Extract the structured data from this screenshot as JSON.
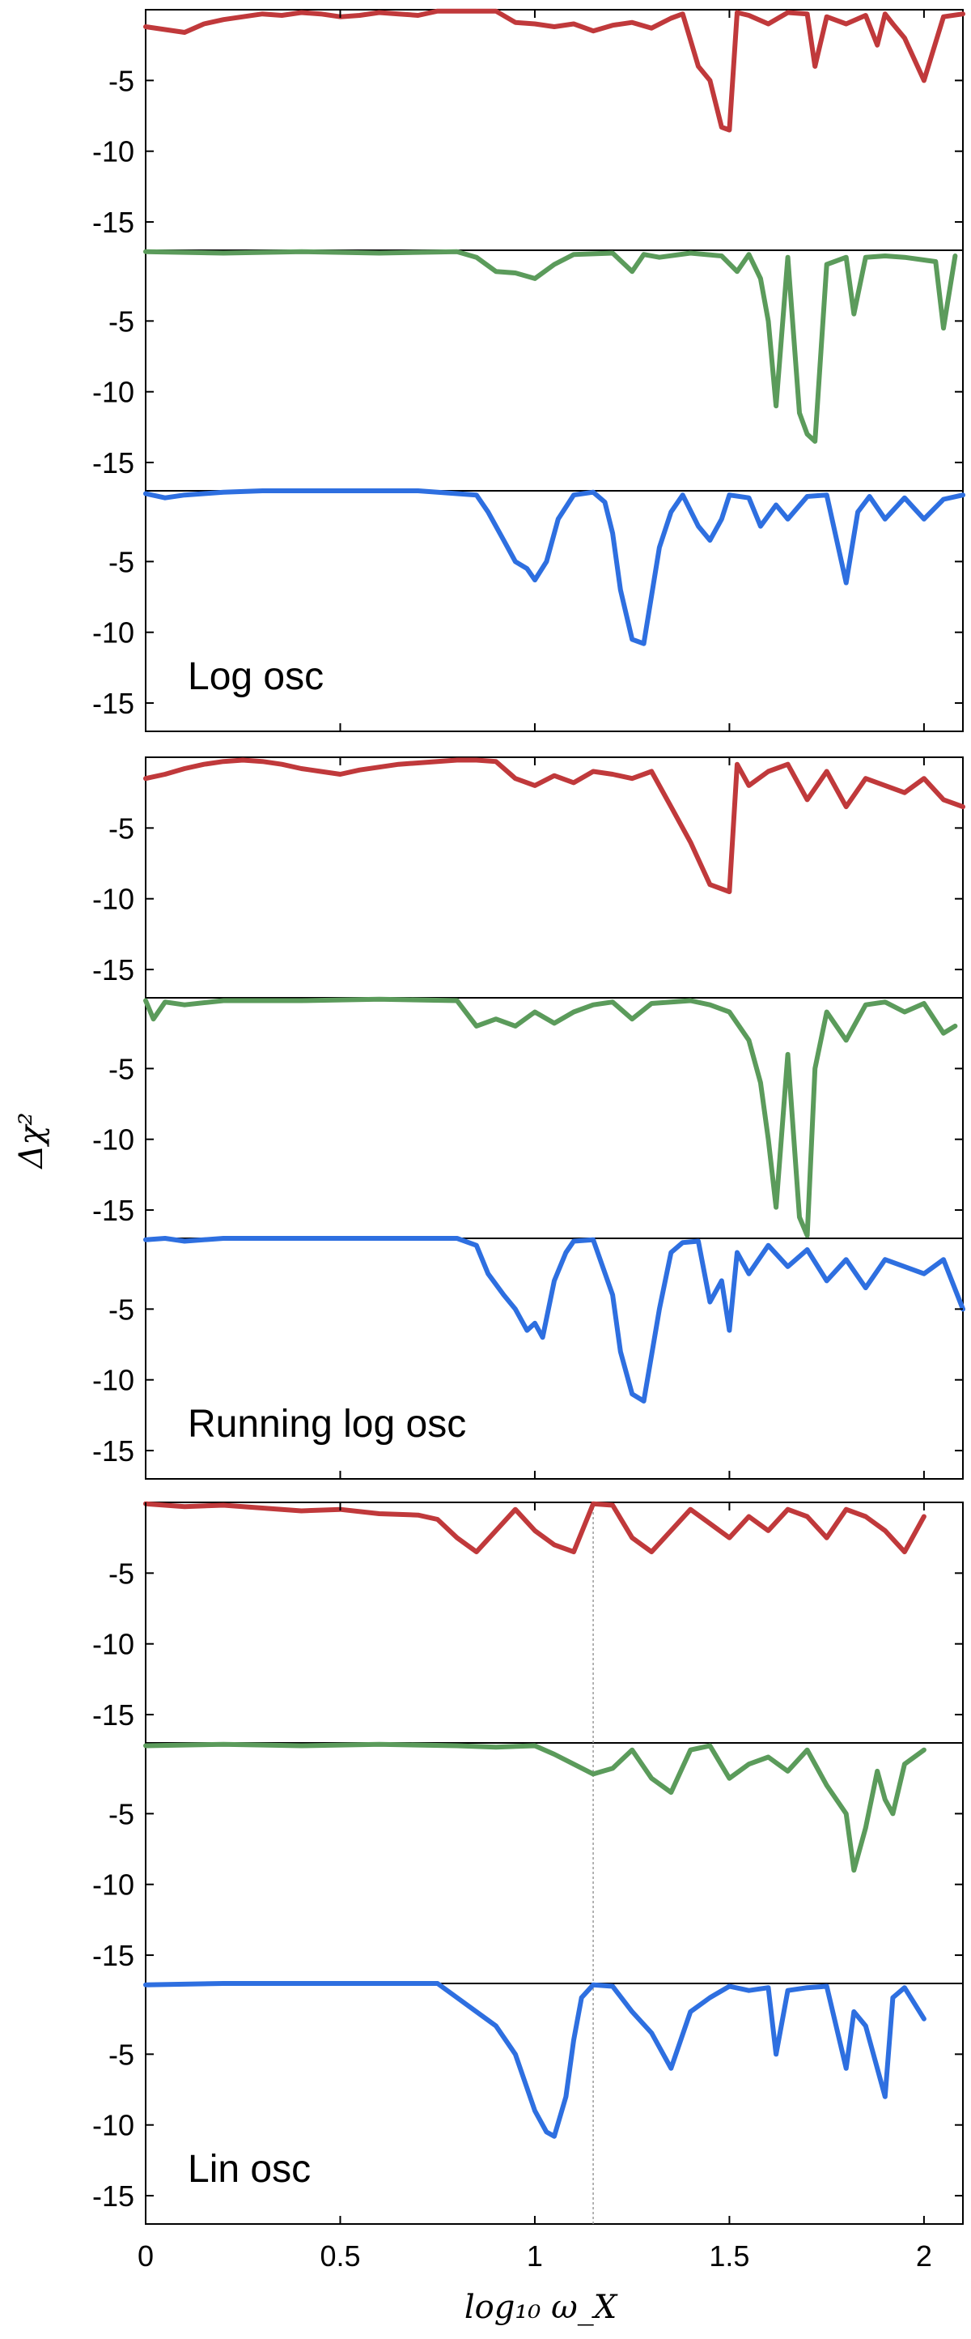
{
  "chart_data": {
    "type": "line",
    "xlabel": "log₁₀ ω_X",
    "ylabel": "Δχ²",
    "x_ticks": [
      "0",
      "0.5",
      "1",
      "1.5",
      "2"
    ],
    "y_ticks": [
      "-5",
      "-10",
      "-15"
    ],
    "xlim": [
      0,
      2.1
    ],
    "ylim": [
      -17,
      0
    ],
    "colors": {
      "red": "#c0393b",
      "green": "#5b9b5b",
      "blue": "#2e6fe0",
      "reference": "#9a9a9a"
    },
    "groups": [
      {
        "label": "Log osc",
        "reference_line_x": null,
        "series": [
          {
            "color": "red",
            "x": [
              0,
              0.1,
              0.15,
              0.2,
              0.25,
              0.3,
              0.35,
              0.4,
              0.45,
              0.5,
              0.55,
              0.6,
              0.65,
              0.7,
              0.75,
              0.8,
              0.85,
              0.9,
              0.95,
              1.0,
              1.05,
              1.1,
              1.15,
              1.2,
              1.25,
              1.3,
              1.35,
              1.38,
              1.42,
              1.45,
              1.48,
              1.5,
              1.52,
              1.55,
              1.6,
              1.65,
              1.7,
              1.72,
              1.75,
              1.8,
              1.85,
              1.88,
              1.9,
              1.92,
              1.95,
              2.0,
              2.05,
              2.1
            ],
            "y": [
              -1.2,
              -1.6,
              -1.0,
              -0.7,
              -0.5,
              -0.3,
              -0.4,
              -0.2,
              -0.3,
              -0.5,
              -0.4,
              -0.2,
              -0.3,
              -0.4,
              -0.1,
              -0.1,
              -0.1,
              -0.1,
              -0.9,
              -1.0,
              -1.2,
              -1.0,
              -1.5,
              -1.1,
              -0.9,
              -1.3,
              -0.6,
              -0.3,
              -4.0,
              -5.0,
              -8.3,
              -8.5,
              -0.2,
              -0.4,
              -1.0,
              -0.2,
              -0.3,
              -4.0,
              -0.5,
              -1.0,
              -0.4,
              -2.5,
              -0.3,
              -1.0,
              -2.0,
              -5.0,
              -0.5,
              -0.3
            ]
          },
          {
            "color": "green",
            "x": [
              0,
              0.2,
              0.4,
              0.6,
              0.8,
              0.85,
              0.9,
              0.95,
              1.0,
              1.05,
              1.1,
              1.2,
              1.25,
              1.28,
              1.32,
              1.4,
              1.48,
              1.52,
              1.55,
              1.58,
              1.6,
              1.62,
              1.65,
              1.68,
              1.7,
              1.72,
              1.75,
              1.8,
              1.82,
              1.85,
              1.9,
              1.95,
              2.03,
              2.05,
              2.08
            ],
            "y": [
              -0.1,
              -0.2,
              -0.1,
              -0.2,
              -0.1,
              -0.5,
              -1.5,
              -1.6,
              -2.0,
              -1.0,
              -0.3,
              -0.2,
              -1.5,
              -0.3,
              -0.5,
              -0.2,
              -0.4,
              -1.5,
              -0.3,
              -2.0,
              -5.0,
              -11.0,
              -0.5,
              -11.5,
              -13.0,
              -13.5,
              -1.0,
              -0.5,
              -4.5,
              -0.5,
              -0.4,
              -0.5,
              -0.8,
              -5.5,
              -0.4
            ]
          },
          {
            "color": "blue",
            "x": [
              0,
              0.05,
              0.1,
              0.15,
              0.2,
              0.3,
              0.5,
              0.7,
              0.85,
              0.88,
              0.92,
              0.95,
              0.98,
              1.0,
              1.03,
              1.06,
              1.1,
              1.15,
              1.18,
              1.2,
              1.22,
              1.25,
              1.28,
              1.32,
              1.35,
              1.38,
              1.42,
              1.45,
              1.48,
              1.5,
              1.55,
              1.58,
              1.62,
              1.65,
              1.7,
              1.75,
              1.8,
              1.83,
              1.86,
              1.9,
              1.95,
              2.0,
              2.05,
              2.1
            ],
            "y": [
              -0.2,
              -0.5,
              -0.3,
              -0.2,
              -0.1,
              0,
              0,
              0,
              -0.3,
              -1.5,
              -3.5,
              -5.0,
              -5.5,
              -6.3,
              -5.0,
              -2.0,
              -0.3,
              -0.1,
              -0.8,
              -3.0,
              -7.0,
              -10.5,
              -10.8,
              -4.0,
              -1.5,
              -0.3,
              -2.5,
              -3.5,
              -2.0,
              -0.3,
              -0.5,
              -2.5,
              -1.0,
              -2.0,
              -0.4,
              -0.3,
              -6.5,
              -1.5,
              -0.4,
              -2.0,
              -0.5,
              -2.0,
              -0.6,
              -0.3
            ]
          }
        ]
      },
      {
        "label": "Running log osc",
        "reference_line_x": null,
        "series": [
          {
            "color": "red",
            "x": [
              0,
              0.05,
              0.1,
              0.15,
              0.2,
              0.25,
              0.3,
              0.35,
              0.4,
              0.45,
              0.5,
              0.55,
              0.6,
              0.65,
              0.7,
              0.75,
              0.8,
              0.85,
              0.9,
              0.95,
              1.0,
              1.05,
              1.1,
              1.15,
              1.2,
              1.25,
              1.3,
              1.35,
              1.4,
              1.45,
              1.5,
              1.52,
              1.55,
              1.6,
              1.65,
              1.7,
              1.75,
              1.8,
              1.85,
              1.9,
              1.95,
              2.0,
              2.05,
              2.1
            ],
            "y": [
              -1.5,
              -1.2,
              -0.8,
              -0.5,
              -0.3,
              -0.2,
              -0.3,
              -0.5,
              -0.8,
              -1.0,
              -1.2,
              -0.9,
              -0.7,
              -0.5,
              -0.4,
              -0.3,
              -0.2,
              -0.2,
              -0.3,
              -1.5,
              -2.0,
              -1.3,
              -1.8,
              -1.0,
              -1.2,
              -1.5,
              -1.0,
              -3.5,
              -6.0,
              -9.0,
              -9.5,
              -0.5,
              -2.0,
              -1.0,
              -0.5,
              -3.0,
              -1.0,
              -3.5,
              -1.5,
              -2.0,
              -2.5,
              -1.5,
              -3.0,
              -3.5
            ]
          },
          {
            "color": "green",
            "x": [
              0,
              0.02,
              0.05,
              0.1,
              0.2,
              0.4,
              0.6,
              0.8,
              0.85,
              0.9,
              0.95,
              1.0,
              1.05,
              1.1,
              1.15,
              1.2,
              1.25,
              1.3,
              1.35,
              1.4,
              1.45,
              1.5,
              1.55,
              1.58,
              1.6,
              1.62,
              1.65,
              1.68,
              1.7,
              1.72,
              1.75,
              1.8,
              1.85,
              1.9,
              1.95,
              2.0,
              2.05,
              2.08
            ],
            "y": [
              -0.2,
              -1.5,
              -0.3,
              -0.5,
              -0.2,
              -0.2,
              -0.1,
              -0.2,
              -2.0,
              -1.5,
              -2.0,
              -1.0,
              -1.8,
              -1.0,
              -0.5,
              -0.3,
              -1.5,
              -0.4,
              -0.3,
              -0.2,
              -0.5,
              -1.0,
              -3.0,
              -6.0,
              -10.0,
              -14.8,
              -4.0,
              -15.5,
              -16.8,
              -5.0,
              -1.0,
              -3.0,
              -0.5,
              -0.3,
              -1.0,
              -0.4,
              -2.5,
              -2.0
            ]
          },
          {
            "color": "blue",
            "x": [
              0,
              0.05,
              0.1,
              0.2,
              0.4,
              0.6,
              0.8,
              0.85,
              0.88,
              0.92,
              0.95,
              0.98,
              1.0,
              1.02,
              1.05,
              1.08,
              1.1,
              1.15,
              1.2,
              1.22,
              1.25,
              1.28,
              1.32,
              1.35,
              1.38,
              1.42,
              1.45,
              1.48,
              1.5,
              1.52,
              1.55,
              1.6,
              1.65,
              1.7,
              1.75,
              1.8,
              1.85,
              1.9,
              1.95,
              2.0,
              2.05,
              2.1
            ],
            "y": [
              -0.1,
              0,
              -0.2,
              0,
              0,
              0,
              0,
              -0.5,
              -2.5,
              -4.0,
              -5.0,
              -6.5,
              -6.0,
              -7.0,
              -3.0,
              -1.0,
              -0.2,
              -0.1,
              -4.0,
              -8.0,
              -11.0,
              -11.5,
              -5.0,
              -1.0,
              -0.3,
              -0.2,
              -4.5,
              -3.0,
              -6.5,
              -1.0,
              -2.5,
              -0.5,
              -2.0,
              -0.8,
              -3.0,
              -1.5,
              -3.5,
              -1.5,
              -2.0,
              -2.5,
              -1.5,
              -5.0
            ]
          }
        ]
      },
      {
        "label": "Lin osc",
        "reference_line_x": 1.15,
        "series": [
          {
            "color": "red",
            "x": [
              0,
              0.1,
              0.2,
              0.3,
              0.4,
              0.5,
              0.6,
              0.7,
              0.75,
              0.8,
              0.85,
              0.9,
              0.95,
              1.0,
              1.05,
              1.1,
              1.15,
              1.2,
              1.25,
              1.3,
              1.35,
              1.4,
              1.45,
              1.5,
              1.55,
              1.6,
              1.65,
              1.7,
              1.75,
              1.8,
              1.85,
              1.9,
              1.95,
              2.0
            ],
            "y": [
              -0.1,
              -0.3,
              -0.2,
              -0.4,
              -0.6,
              -0.5,
              -0.8,
              -0.9,
              -1.2,
              -2.5,
              -3.5,
              -2.0,
              -0.5,
              -2.0,
              -3.0,
              -3.5,
              -0.1,
              -0.2,
              -2.5,
              -3.5,
              -2.0,
              -0.5,
              -1.5,
              -2.5,
              -1.0,
              -2.0,
              -0.5,
              -1.0,
              -2.5,
              -0.5,
              -1.0,
              -2.0,
              -3.5,
              -1.0
            ]
          },
          {
            "color": "green",
            "x": [
              0,
              0.2,
              0.4,
              0.6,
              0.8,
              0.9,
              1.0,
              1.05,
              1.1,
              1.15,
              1.2,
              1.25,
              1.3,
              1.35,
              1.4,
              1.45,
              1.5,
              1.55,
              1.6,
              1.65,
              1.7,
              1.75,
              1.8,
              1.82,
              1.85,
              1.88,
              1.9,
              1.92,
              1.95,
              2.0
            ],
            "y": [
              -0.2,
              -0.1,
              -0.2,
              -0.1,
              -0.2,
              -0.3,
              -0.2,
              -0.8,
              -1.5,
              -2.2,
              -1.8,
              -0.5,
              -2.5,
              -3.5,
              -0.5,
              -0.2,
              -2.5,
              -1.5,
              -1.0,
              -2.0,
              -0.5,
              -3.0,
              -5.0,
              -9.0,
              -6.0,
              -2.0,
              -4.0,
              -5.0,
              -1.5,
              -0.5
            ]
          },
          {
            "color": "blue",
            "x": [
              0,
              0.2,
              0.4,
              0.6,
              0.75,
              0.8,
              0.85,
              0.9,
              0.95,
              1.0,
              1.03,
              1.05,
              1.08,
              1.1,
              1.12,
              1.15,
              1.2,
              1.25,
              1.3,
              1.35,
              1.4,
              1.45,
              1.5,
              1.55,
              1.6,
              1.62,
              1.65,
              1.7,
              1.75,
              1.8,
              1.82,
              1.85,
              1.9,
              1.92,
              1.95,
              2.0
            ],
            "y": [
              -0.1,
              0,
              0,
              0,
              0,
              -1.0,
              -2.0,
              -3.0,
              -5.0,
              -9.0,
              -10.5,
              -10.8,
              -8.0,
              -4.0,
              -1.0,
              -0.1,
              -0.2,
              -2.0,
              -3.5,
              -6.0,
              -2.0,
              -1.0,
              -0.2,
              -0.5,
              -0.3,
              -5.0,
              -0.5,
              -0.3,
              -0.2,
              -6.0,
              -2.0,
              -3.0,
              -8.0,
              -1.0,
              -0.3,
              -2.5
            ]
          }
        ]
      }
    ]
  }
}
